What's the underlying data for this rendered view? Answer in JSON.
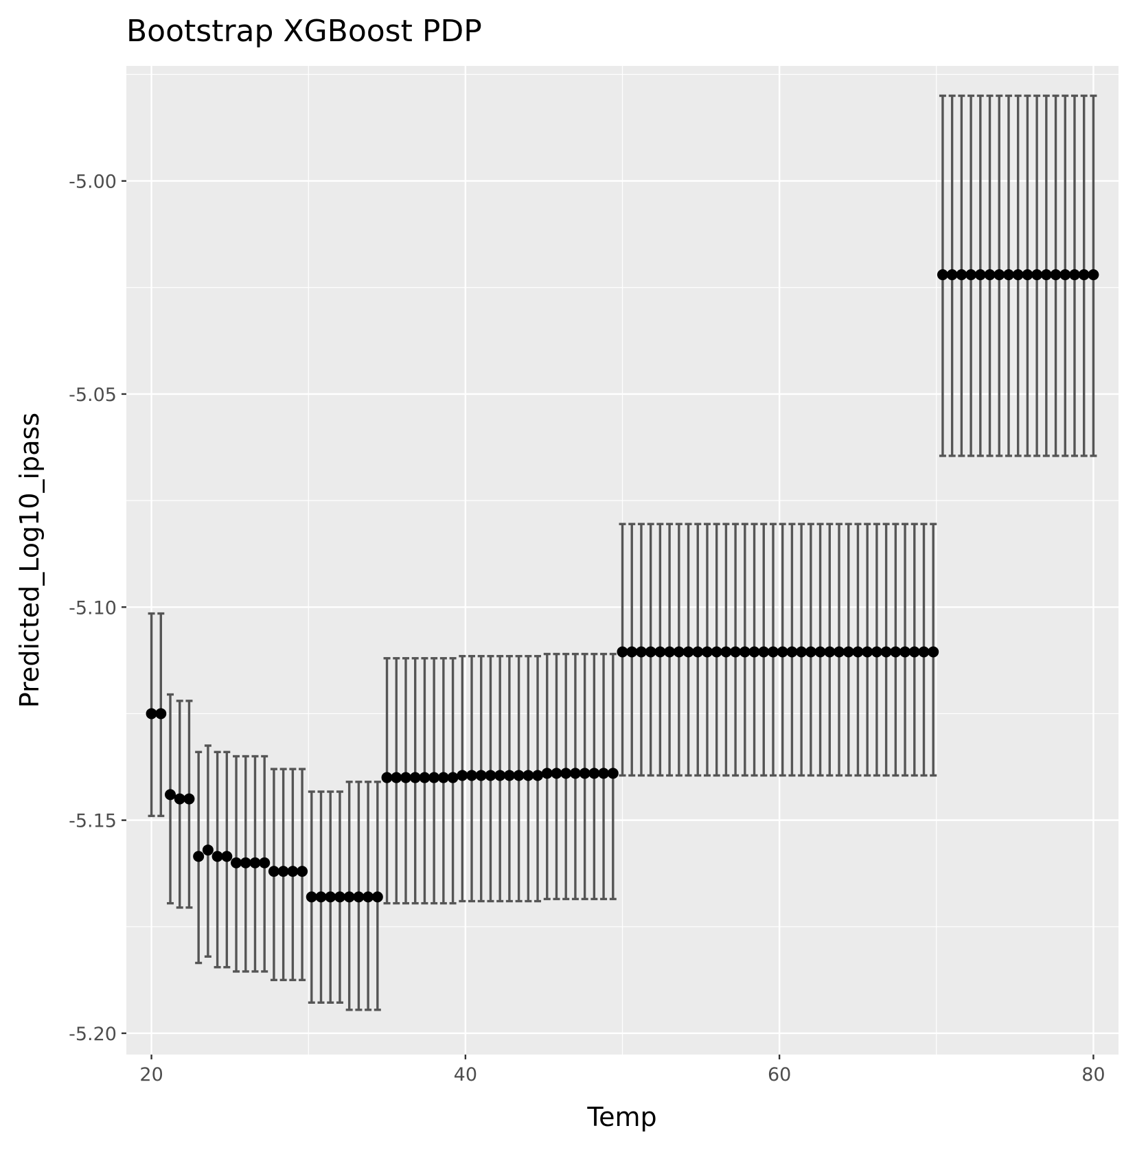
{
  "chart_data": {
    "type": "scatter",
    "title": "Bootstrap XGBoost PDP",
    "xlabel": "Temp",
    "ylabel": "Predicted_Log10_ipass",
    "xlim": [
      18.4,
      81.6
    ],
    "ylim": [
      -5.205,
      -4.973
    ],
    "x_ticks": [
      20,
      40,
      60,
      80
    ],
    "x_tick_labels": [
      "20",
      "40",
      "60",
      "80"
    ],
    "y_ticks": [
      -5.2,
      -5.15,
      -5.1,
      -5.05,
      -5.0
    ],
    "y_tick_labels": [
      "-5.20",
      "-5.15",
      "-5.10",
      "-5.05",
      "-5.00"
    ],
    "grid": true,
    "legend": "none",
    "colors": {
      "panel_background": "#ebebeb",
      "grid_major": "#ffffff",
      "point": "#000000",
      "errorbar": "#555555"
    },
    "groups": [
      {
        "x": [
          20,
          20.6
        ],
        "y": -5.125,
        "lower": -5.149,
        "upper": -5.1015
      },
      {
        "x": [
          21.2
        ],
        "y": -5.144,
        "lower": -5.1695,
        "upper": -5.1205
      },
      {
        "x": [
          21.8,
          22.4
        ],
        "y": -5.145,
        "lower": -5.1705,
        "upper": -5.122
      },
      {
        "x": [
          23.0
        ],
        "y": -5.1585,
        "lower": -5.1835,
        "upper": -5.134
      },
      {
        "x": [
          23.6
        ],
        "y": -5.157,
        "lower": -5.182,
        "upper": -5.1325
      },
      {
        "x": [
          24.2,
          24.8
        ],
        "y": -5.1585,
        "lower": -5.1845,
        "upper": -5.134
      },
      {
        "x": [
          25.4,
          26.0,
          26.6,
          27.2
        ],
        "y": -5.16,
        "lower": -5.1855,
        "upper": -5.135
      },
      {
        "x": [
          27.8,
          28.4,
          29.0,
          29.6
        ],
        "y": -5.162,
        "lower": -5.1875,
        "upper": -5.138
      },
      {
        "x": [
          30.2,
          30.8,
          31.4,
          32.0
        ],
        "y": -5.168,
        "lower": -5.1928,
        "upper": -5.1433
      },
      {
        "x": [
          32.6,
          33.2,
          33.8,
          34.4
        ],
        "y": -5.168,
        "lower": -5.1945,
        "upper": -5.141
      },
      {
        "x": [
          35.0,
          35.6,
          36.2,
          36.8,
          37.4,
          38.0,
          38.6,
          39.2
        ],
        "y": -5.14,
        "lower": -5.1695,
        "upper": -5.112
      },
      {
        "x": [
          39.8,
          40.4,
          41.0,
          41.6,
          42.2,
          42.8,
          43.4,
          44.0,
          44.6
        ],
        "y": -5.1395,
        "lower": -5.169,
        "upper": -5.1115
      },
      {
        "x": [
          45.2,
          45.8,
          46.4,
          47.0,
          47.6,
          48.2,
          48.8,
          49.4
        ],
        "y": -5.139,
        "lower": -5.1685,
        "upper": -5.111
      },
      {
        "x": [
          50.0,
          50.6,
          51.2,
          51.8,
          52.4,
          53.0,
          53.6,
          54.2,
          54.8,
          55.4,
          56.0,
          56.6,
          57.2,
          57.8,
          58.4,
          59.0,
          59.6,
          60.2,
          60.8,
          61.4,
          62.0,
          62.6,
          63.2,
          63.8,
          64.4,
          65.0,
          65.6,
          66.2,
          66.8,
          67.4,
          68.0,
          68.6,
          69.2,
          69.8
        ],
        "y": -5.1105,
        "lower": -5.1395,
        "upper": -5.0805
      },
      {
        "x": [
          70.4,
          71.0,
          71.6,
          72.2,
          72.8,
          73.4,
          74.0,
          74.6,
          75.2,
          75.8,
          76.4,
          77.0,
          77.6,
          78.2,
          78.8,
          79.4,
          80.0
        ],
        "y": -5.022,
        "lower": -5.0645,
        "upper": -4.98
      }
    ]
  }
}
